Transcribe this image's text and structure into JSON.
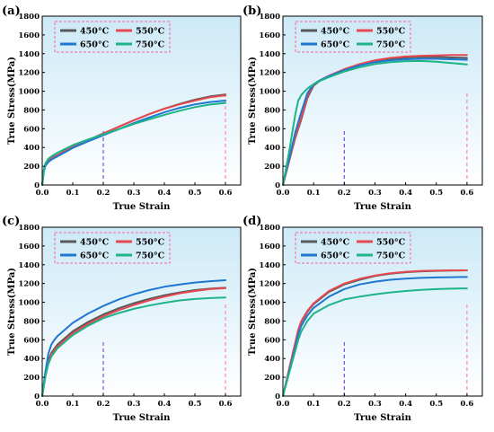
{
  "chart_data": [
    {
      "type": "line",
      "panel_label": "(a)",
      "xlabel": "True Strain",
      "ylabel": "True Stress(MPa)",
      "xlim": [
        0,
        0.65
      ],
      "ylim": [
        0,
        1800
      ],
      "x_ticks": [
        "0.0",
        "0.1",
        "0.2",
        "0.3",
        "0.4",
        "0.5",
        "0.6"
      ],
      "y_ticks": [
        "0",
        "200",
        "400",
        "600",
        "800",
        "1000",
        "1200",
        "1400",
        "1600",
        "1800"
      ],
      "grid": false,
      "background": "gradient light blue",
      "legend": "top-left",
      "vlines": [
        {
          "x": 0.2,
          "color": "#6a2bd6"
        },
        {
          "x": 0.6,
          "color": "#ff6fa5"
        }
      ],
      "series": [
        {
          "name": "450°C",
          "color": "#595959",
          "x": [
            0,
            0.005,
            0.01,
            0.02,
            0.03,
            0.05,
            0.1,
            0.15,
            0.2,
            0.25,
            0.3,
            0.35,
            0.4,
            0.45,
            0.5,
            0.55,
            0.6
          ],
          "values": [
            0,
            150,
            210,
            260,
            285,
            320,
            410,
            480,
            550,
            620,
            690,
            755,
            815,
            865,
            910,
            945,
            965
          ]
        },
        {
          "name": "550°C",
          "color": "#e8484f",
          "x": [
            0,
            0.005,
            0.01,
            0.02,
            0.03,
            0.05,
            0.1,
            0.15,
            0.2,
            0.25,
            0.3,
            0.35,
            0.4,
            0.45,
            0.5,
            0.55,
            0.6
          ],
          "values": [
            0,
            150,
            210,
            255,
            280,
            315,
            405,
            478,
            548,
            620,
            690,
            755,
            812,
            860,
            900,
            935,
            955
          ]
        },
        {
          "name": "650°C",
          "color": "#1f77d0",
          "x": [
            0,
            0.005,
            0.01,
            0.02,
            0.03,
            0.05,
            0.1,
            0.15,
            0.2,
            0.25,
            0.3,
            0.35,
            0.4,
            0.45,
            0.5,
            0.55,
            0.6
          ],
          "values": [
            0,
            140,
            200,
            245,
            270,
            305,
            395,
            465,
            530,
            595,
            660,
            720,
            775,
            822,
            860,
            885,
            900
          ]
        },
        {
          "name": "750°C",
          "color": "#1eb488",
          "x": [
            0,
            0.005,
            0.01,
            0.02,
            0.03,
            0.05,
            0.1,
            0.15,
            0.2,
            0.25,
            0.3,
            0.35,
            0.4,
            0.45,
            0.5,
            0.55,
            0.6
          ],
          "values": [
            0,
            160,
            230,
            280,
            305,
            345,
            425,
            485,
            540,
            595,
            650,
            700,
            748,
            792,
            830,
            858,
            875
          ]
        }
      ]
    },
    {
      "type": "line",
      "panel_label": "(b)",
      "xlabel": "True Strain",
      "ylabel": "True Stress(MPa)",
      "xlim": [
        0,
        0.65
      ],
      "ylim": [
        0,
        1800
      ],
      "x_ticks": [
        "0.0",
        "0.1",
        "0.2",
        "0.3",
        "0.4",
        "0.5",
        "0.6"
      ],
      "y_ticks": [
        "0",
        "200",
        "400",
        "600",
        "800",
        "1000",
        "1200",
        "1400",
        "1600",
        "1800"
      ],
      "grid": false,
      "background": "gradient light blue",
      "legend": "top-left",
      "vlines": [
        {
          "x": 0.2,
          "color": "#6a2bd6"
        },
        {
          "x": 0.6,
          "color": "#ff6fa5"
        }
      ],
      "series": [
        {
          "name": "450°C",
          "color": "#595959",
          "x": [
            0,
            0.02,
            0.04,
            0.06,
            0.08,
            0.1,
            0.12,
            0.15,
            0.2,
            0.25,
            0.3,
            0.35,
            0.4,
            0.45,
            0.5,
            0.55,
            0.6
          ],
          "values": [
            0,
            250,
            500,
            700,
            930,
            1060,
            1110,
            1160,
            1230,
            1280,
            1320,
            1345,
            1360,
            1365,
            1365,
            1360,
            1355
          ]
        },
        {
          "name": "550°C",
          "color": "#e8484f",
          "x": [
            0,
            0.02,
            0.04,
            0.06,
            0.08,
            0.1,
            0.12,
            0.15,
            0.2,
            0.25,
            0.3,
            0.35,
            0.4,
            0.45,
            0.5,
            0.55,
            0.6
          ],
          "values": [
            0,
            260,
            510,
            720,
            950,
            1070,
            1115,
            1165,
            1235,
            1290,
            1330,
            1355,
            1370,
            1378,
            1382,
            1385,
            1385
          ]
        },
        {
          "name": "650°C",
          "color": "#1f77d0",
          "x": [
            0,
            0.02,
            0.04,
            0.06,
            0.08,
            0.1,
            0.12,
            0.15,
            0.2,
            0.25,
            0.3,
            0.35,
            0.4,
            0.45,
            0.5,
            0.55,
            0.6
          ],
          "values": [
            0,
            280,
            560,
            780,
            980,
            1075,
            1115,
            1160,
            1225,
            1275,
            1310,
            1330,
            1340,
            1345,
            1345,
            1340,
            1335
          ]
        },
        {
          "name": "750°C",
          "color": "#1eb488",
          "x": [
            0,
            0.02,
            0.04,
            0.05,
            0.06,
            0.08,
            0.1,
            0.12,
            0.15,
            0.2,
            0.25,
            0.3,
            0.35,
            0.4,
            0.45,
            0.5,
            0.55,
            0.6
          ],
          "values": [
            0,
            350,
            750,
            900,
            960,
            1030,
            1075,
            1110,
            1150,
            1210,
            1255,
            1290,
            1310,
            1320,
            1322,
            1315,
            1300,
            1285
          ]
        }
      ]
    },
    {
      "type": "line",
      "panel_label": "(c)",
      "xlabel": "True Strain",
      "ylabel": "True Stress(MPa)",
      "xlim": [
        0,
        0.65
      ],
      "ylim": [
        0,
        1800
      ],
      "x_ticks": [
        "0.0",
        "0.1",
        "0.2",
        "0.3",
        "0.4",
        "0.5",
        "0.6"
      ],
      "y_ticks": [
        "0",
        "200",
        "400",
        "600",
        "800",
        "1000",
        "1200",
        "1400",
        "1600",
        "1800"
      ],
      "grid": false,
      "background": "gradient light blue",
      "legend": "top-left",
      "vlines": [
        {
          "x": 0.2,
          "color": "#6a2bd6"
        },
        {
          "x": 0.6,
          "color": "#ff6fa5"
        }
      ],
      "series": [
        {
          "name": "450°C",
          "color": "#595959",
          "x": [
            0,
            0.01,
            0.02,
            0.03,
            0.05,
            0.1,
            0.15,
            0.2,
            0.25,
            0.3,
            0.35,
            0.4,
            0.45,
            0.5,
            0.55,
            0.6
          ],
          "values": [
            0,
            220,
            380,
            460,
            550,
            690,
            790,
            870,
            935,
            990,
            1035,
            1075,
            1105,
            1130,
            1145,
            1155
          ]
        },
        {
          "name": "550°C",
          "color": "#e8484f",
          "x": [
            0,
            0.01,
            0.02,
            0.03,
            0.05,
            0.1,
            0.15,
            0.2,
            0.25,
            0.3,
            0.35,
            0.4,
            0.45,
            0.5,
            0.55,
            0.6
          ],
          "values": [
            0,
            210,
            360,
            440,
            530,
            670,
            770,
            850,
            915,
            970,
            1020,
            1060,
            1095,
            1120,
            1140,
            1150
          ]
        },
        {
          "name": "650°C",
          "color": "#1f77d0",
          "x": [
            0,
            0.01,
            0.02,
            0.03,
            0.04,
            0.05,
            0.1,
            0.15,
            0.2,
            0.25,
            0.3,
            0.35,
            0.4,
            0.45,
            0.5,
            0.55,
            0.6
          ],
          "values": [
            0,
            250,
            450,
            550,
            600,
            640,
            780,
            880,
            960,
            1030,
            1085,
            1130,
            1165,
            1190,
            1210,
            1225,
            1235
          ]
        },
        {
          "name": "750°C",
          "color": "#1eb488",
          "x": [
            0,
            0.01,
            0.02,
            0.03,
            0.05,
            0.1,
            0.15,
            0.2,
            0.25,
            0.3,
            0.35,
            0.4,
            0.45,
            0.5,
            0.55,
            0.6
          ],
          "values": [
            0,
            200,
            340,
            420,
            510,
            650,
            750,
            830,
            885,
            930,
            965,
            995,
            1020,
            1035,
            1045,
            1050
          ]
        }
      ]
    },
    {
      "type": "line",
      "panel_label": "(d)",
      "xlabel": "True Strain",
      "ylabel": "True Stress(MPa)",
      "xlim": [
        0,
        0.65
      ],
      "ylim": [
        0,
        1800
      ],
      "x_ticks": [
        "0.0",
        "0.1",
        "0.2",
        "0.3",
        "0.4",
        "0.5",
        "0.6"
      ],
      "y_ticks": [
        "0",
        "200",
        "400",
        "600",
        "800",
        "1000",
        "1200",
        "1400",
        "1600",
        "1800"
      ],
      "grid": false,
      "background": "gradient light blue",
      "legend": "top-left",
      "vlines": [
        {
          "x": 0.2,
          "color": "#6a2bd6"
        },
        {
          "x": 0.6,
          "color": "#ff6fa5"
        }
      ],
      "series": [
        {
          "name": "450°C",
          "color": "#595959",
          "x": [
            0,
            0.02,
            0.04,
            0.05,
            0.06,
            0.08,
            0.1,
            0.15,
            0.2,
            0.25,
            0.3,
            0.35,
            0.4,
            0.45,
            0.5,
            0.55,
            0.6
          ],
          "values": [
            0,
            280,
            560,
            700,
            790,
            900,
            980,
            1110,
            1190,
            1240,
            1280,
            1305,
            1320,
            1330,
            1335,
            1338,
            1340
          ]
        },
        {
          "name": "550°C",
          "color": "#e8484f",
          "x": [
            0,
            0.02,
            0.04,
            0.05,
            0.06,
            0.08,
            0.1,
            0.15,
            0.2,
            0.25,
            0.3,
            0.35,
            0.4,
            0.45,
            0.5,
            0.55,
            0.6
          ],
          "values": [
            0,
            285,
            570,
            710,
            800,
            910,
            990,
            1120,
            1200,
            1250,
            1285,
            1310,
            1325,
            1335,
            1338,
            1340,
            1340
          ]
        },
        {
          "name": "650°C",
          "color": "#1f77d0",
          "x": [
            0,
            0.02,
            0.04,
            0.05,
            0.06,
            0.08,
            0.1,
            0.15,
            0.2,
            0.25,
            0.3,
            0.35,
            0.4,
            0.45,
            0.5,
            0.55,
            0.6
          ],
          "values": [
            0,
            260,
            520,
            660,
            750,
            860,
            940,
            1060,
            1140,
            1190,
            1220,
            1240,
            1252,
            1260,
            1265,
            1268,
            1270
          ]
        },
        {
          "name": "750°C",
          "color": "#1eb488",
          "x": [
            0,
            0.02,
            0.04,
            0.05,
            0.06,
            0.08,
            0.1,
            0.15,
            0.2,
            0.25,
            0.3,
            0.35,
            0.4,
            0.45,
            0.5,
            0.55,
            0.6
          ],
          "values": [
            0,
            240,
            480,
            600,
            690,
            800,
            880,
            970,
            1030,
            1060,
            1085,
            1105,
            1120,
            1132,
            1140,
            1145,
            1148
          ]
        }
      ]
    }
  ]
}
